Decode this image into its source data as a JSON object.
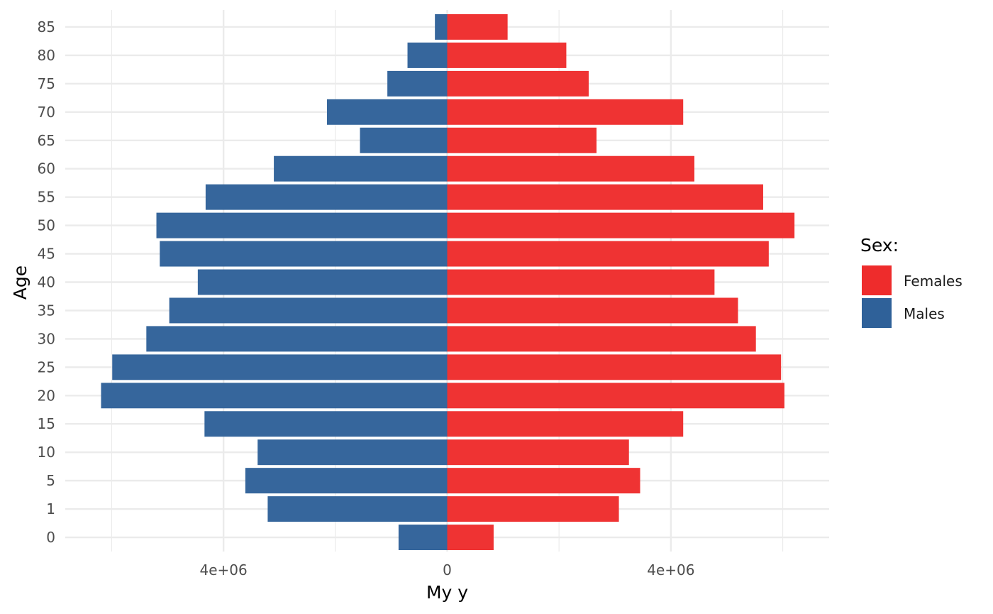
{
  "chart_data": {
    "type": "bar",
    "orientation": "horizontal",
    "layout": "population-pyramid",
    "xlabel": "My y",
    "ylabel": "Age",
    "xlim": [
      -6830000,
      6830000
    ],
    "x_ticks": [
      {
        "value": -4000000,
        "label": "4e+06"
      },
      {
        "value": 0,
        "label": "0"
      },
      {
        "value": 4000000,
        "label": "4e+06"
      }
    ],
    "grid": true,
    "categories": [
      "0",
      "1",
      "5",
      "10",
      "15",
      "20",
      "25",
      "30",
      "35",
      "40",
      "45",
      "50",
      "55",
      "60",
      "65",
      "70",
      "75",
      "80",
      "85"
    ],
    "series": [
      {
        "name": "Females",
        "color": "#EE2C2C",
        "values": [
          830000,
          3070000,
          3450000,
          3250000,
          4220000,
          6030000,
          5970000,
          5520000,
          5200000,
          4780000,
          5750000,
          6210000,
          5650000,
          4420000,
          2670000,
          4220000,
          2530000,
          2130000,
          1080000
        ]
      },
      {
        "name": "Males",
        "color": "#2F6199",
        "values": [
          870000,
          3210000,
          3610000,
          3390000,
          4340000,
          6190000,
          5990000,
          5380000,
          4970000,
          4460000,
          5140000,
          5200000,
          4320000,
          3100000,
          1560000,
          2150000,
          1070000,
          710000,
          220000
        ]
      }
    ],
    "legend": {
      "title": "Sex:",
      "position": "right"
    }
  }
}
